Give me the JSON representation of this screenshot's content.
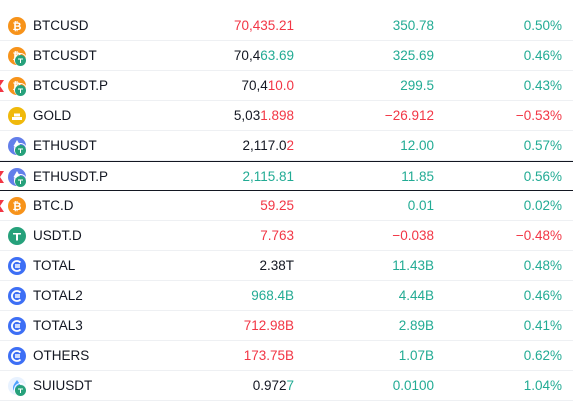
{
  "colors": {
    "up": "#22ab94",
    "down": "#f23645",
    "neutral": "#131722",
    "btc": "#f7931a",
    "tether": "#26a17b",
    "eth": "#627eea",
    "gold": "#f0b90b",
    "total": "#3d6ff5"
  },
  "rows": [
    {
      "symbol": "BTCUSD",
      "last_a": "70,435.21",
      "last_b": "",
      "last_color": "red",
      "change": "350.78",
      "change_color": "green",
      "pct": "0.50%",
      "pct_color": "green",
      "icon": "bitcoin-icon",
      "flag": false
    },
    {
      "symbol": "BTCUSDT",
      "last_a": "70,4",
      "last_b": "63.69",
      "last_color": "green",
      "change": "325.69",
      "change_color": "green",
      "pct": "0.46%",
      "pct_color": "green",
      "icon": "bitcoin-icon",
      "sub": "tether-icon",
      "flag": false
    },
    {
      "symbol": "BTCUSDT.P",
      "last_a": "70,4",
      "last_b": "10.0",
      "last_color": "red",
      "change": "299.5",
      "change_color": "green",
      "pct": "0.43%",
      "pct_color": "green",
      "icon": "bitcoin-icon",
      "sub": "tether-icon",
      "flag": true
    },
    {
      "symbol": "GOLD",
      "last_a": "5,03",
      "last_b": "1.898",
      "last_color": "red",
      "change": "−26.912",
      "change_color": "red",
      "pct": "−0.53%",
      "pct_color": "red",
      "icon": "gold-icon",
      "flag": false
    },
    {
      "symbol": "ETHUSDT",
      "last_a": "2,117.0",
      "last_b": "2",
      "last_color": "red",
      "change": "12.00",
      "change_color": "green",
      "pct": "0.57%",
      "pct_color": "green",
      "icon": "ethereum-icon",
      "sub": "tether-icon",
      "flag": false
    },
    {
      "symbol": "ETHUSDT.P",
      "last_a": "2,115.81",
      "last_b": "",
      "last_color": "green",
      "change": "11.85",
      "change_color": "green",
      "pct": "0.56%",
      "pct_color": "green",
      "icon": "ethereum-icon",
      "sub": "tether-icon",
      "flag": true,
      "selected": true
    },
    {
      "symbol": "BTC.D",
      "last_a": "59.25",
      "last_b": "",
      "last_color": "red",
      "change": "0.01",
      "change_color": "green",
      "pct": "0.02%",
      "pct_color": "green",
      "icon": "bitcoin-icon",
      "flag": true
    },
    {
      "symbol": "USDT.D",
      "last_a": "7.763",
      "last_b": "",
      "last_color": "red",
      "change": "−0.038",
      "change_color": "red",
      "pct": "−0.48%",
      "pct_color": "red",
      "icon": "tether-icon",
      "flag": false
    },
    {
      "symbol": "TOTAL",
      "last_a": "2.38",
      "last_b": "T",
      "last_color": "dark",
      "change": "11.43",
      "change_unit": "B",
      "change_color": "green",
      "pct": "0.48%",
      "pct_color": "green",
      "icon": "total-market-icon",
      "flag": false
    },
    {
      "symbol": "TOTAL2",
      "last_a": "968.4",
      "last_b": "B",
      "last_color": "green",
      "change": "4.44",
      "change_unit": "B",
      "change_color": "green",
      "pct": "0.46%",
      "pct_color": "green",
      "icon": "total-market-icon",
      "flag": false
    },
    {
      "symbol": "TOTAL3",
      "last_a": "712.98",
      "last_b": "B",
      "last_color": "red",
      "change": "2.89",
      "change_unit": "B",
      "change_color": "green",
      "pct": "0.41%",
      "pct_color": "green",
      "icon": "total-market-icon",
      "flag": false
    },
    {
      "symbol": "OTHERS",
      "last_a": "173.75",
      "last_b": "B",
      "last_color": "red",
      "change": "1.07",
      "change_unit": "B",
      "change_color": "green",
      "pct": "0.62%",
      "pct_color": "green",
      "icon": "total-market-icon",
      "flag": false
    },
    {
      "symbol": "SUIUSDT",
      "last_a": "0.972",
      "last_b": "7",
      "last_color": "green",
      "change": "0.0100",
      "change_color": "green",
      "pct": "1.04%",
      "pct_color": "green",
      "icon": "sui-icon",
      "sub": "tether-icon",
      "flag": false
    }
  ]
}
